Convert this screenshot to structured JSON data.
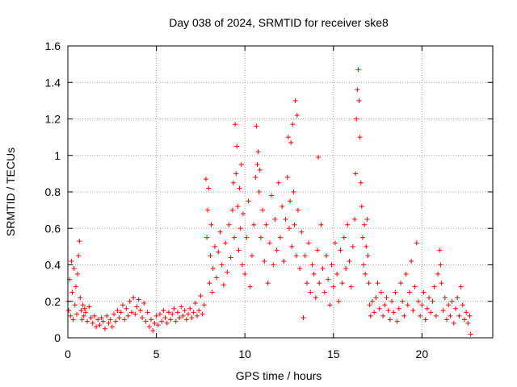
{
  "chart_data": {
    "type": "scatter",
    "title": "Day 038 of 2024, SRMTID for receiver ske8",
    "xlabel": "GPS time / hours",
    "ylabel": "SRMTID / TECUs",
    "xlim": [
      0,
      24
    ],
    "ylim": [
      0,
      1.6
    ],
    "xticks": [
      0,
      5,
      10,
      15,
      20
    ],
    "xtick_labels": [
      "0",
      "5",
      "10",
      "15",
      "20"
    ],
    "yticks": [
      0,
      0.2,
      0.4,
      0.6,
      0.8,
      1.0,
      1.2,
      1.4,
      1.6
    ],
    "ytick_labels": [
      "0",
      "0.2",
      "0.4",
      "0.6",
      "0.8",
      "1",
      "1.2",
      "1.4",
      "1.6"
    ],
    "grid": true,
    "marker": "plus",
    "color": "#ff0000",
    "series": [
      {
        "name": "SRMTID",
        "points": [
          [
            0.0,
            0.2
          ],
          [
            0.05,
            0.15
          ],
          [
            0.1,
            0.32
          ],
          [
            0.15,
            0.12
          ],
          [
            0.2,
            0.42
          ],
          [
            0.25,
            0.25
          ],
          [
            0.3,
            0.1
          ],
          [
            0.35,
            0.38
          ],
          [
            0.4,
            0.18
          ],
          [
            0.45,
            0.28
          ],
          [
            0.5,
            0.13
          ],
          [
            0.55,
            0.35
          ],
          [
            0.6,
            0.45
          ],
          [
            0.65,
            0.53
          ],
          [
            0.7,
            0.22
          ],
          [
            0.75,
            0.15
          ],
          [
            0.8,
            0.1
          ],
          [
            0.85,
            0.18
          ],
          [
            0.9,
            0.12
          ],
          [
            0.95,
            0.16
          ],
          [
            1.0,
            0.14
          ],
          [
            1.1,
            0.09
          ],
          [
            1.2,
            0.17
          ],
          [
            1.3,
            0.11
          ],
          [
            1.4,
            0.08
          ],
          [
            1.5,
            0.12
          ],
          [
            1.6,
            0.06
          ],
          [
            1.7,
            0.1
          ],
          [
            1.8,
            0.07
          ],
          [
            1.9,
            0.11
          ],
          [
            2.0,
            0.09
          ],
          [
            2.1,
            0.05
          ],
          [
            2.2,
            0.12
          ],
          [
            2.3,
            0.08
          ],
          [
            2.4,
            0.1
          ],
          [
            2.5,
            0.06
          ],
          [
            2.6,
            0.13
          ],
          [
            2.7,
            0.09
          ],
          [
            2.8,
            0.15
          ],
          [
            2.9,
            0.11
          ],
          [
            3.0,
            0.14
          ],
          [
            3.1,
            0.18
          ],
          [
            3.2,
            0.1
          ],
          [
            3.3,
            0.16
          ],
          [
            3.4,
            0.12
          ],
          [
            3.5,
            0.2
          ],
          [
            3.6,
            0.14
          ],
          [
            3.7,
            0.22
          ],
          [
            3.8,
            0.13
          ],
          [
            3.9,
            0.17
          ],
          [
            4.0,
            0.21
          ],
          [
            4.1,
            0.15
          ],
          [
            4.2,
            0.11
          ],
          [
            4.3,
            0.19
          ],
          [
            4.4,
            0.09
          ],
          [
            4.5,
            0.14
          ],
          [
            4.6,
            0.06
          ],
          [
            4.7,
            0.1
          ],
          [
            4.8,
            0.04
          ],
          [
            4.9,
            0.08
          ],
          [
            5.0,
            0.12
          ],
          [
            5.1,
            0.07
          ],
          [
            5.2,
            0.13
          ],
          [
            5.3,
            0.09
          ],
          [
            5.4,
            0.15
          ],
          [
            5.5,
            0.11
          ],
          [
            5.6,
            0.08
          ],
          [
            5.7,
            0.14
          ],
          [
            5.8,
            0.1
          ],
          [
            5.9,
            0.13
          ],
          [
            6.0,
            0.16
          ],
          [
            6.1,
            0.09
          ],
          [
            6.2,
            0.14
          ],
          [
            6.3,
            0.11
          ],
          [
            6.4,
            0.17
          ],
          [
            6.5,
            0.12
          ],
          [
            6.6,
            0.15
          ],
          [
            6.7,
            0.1
          ],
          [
            6.8,
            0.13
          ],
          [
            6.9,
            0.16
          ],
          [
            7.0,
            0.11
          ],
          [
            7.1,
            0.14
          ],
          [
            7.2,
            0.19
          ],
          [
            7.3,
            0.12
          ],
          [
            7.4,
            0.15
          ],
          [
            7.5,
            0.23
          ],
          [
            7.6,
            0.13
          ],
          [
            7.7,
            0.18
          ],
          [
            7.8,
            0.87
          ],
          [
            7.85,
            0.55
          ],
          [
            7.9,
            0.7
          ],
          [
            7.95,
            0.82
          ],
          [
            8.0,
            0.3
          ],
          [
            8.05,
            0.45
          ],
          [
            8.1,
            0.62
          ],
          [
            8.15,
            0.25
          ],
          [
            8.2,
            0.38
          ],
          [
            8.3,
            0.5
          ],
          [
            8.4,
            0.33
          ],
          [
            8.5,
            0.47
          ],
          [
            8.6,
            0.58
          ],
          [
            8.7,
            0.4
          ],
          [
            8.8,
            0.29
          ],
          [
            8.9,
            0.52
          ],
          [
            9.0,
            0.36
          ],
          [
            9.1,
            0.62
          ],
          [
            9.2,
            0.44
          ],
          [
            9.3,
            0.7
          ],
          [
            9.35,
            0.85
          ],
          [
            9.4,
            0.55
          ],
          [
            9.45,
            1.17
          ],
          [
            9.5,
            0.9
          ],
          [
            9.55,
            1.05
          ],
          [
            9.6,
            0.72
          ],
          [
            9.65,
            0.48
          ],
          [
            9.7,
            0.82
          ],
          [
            9.75,
            0.6
          ],
          [
            9.8,
            0.95
          ],
          [
            9.85,
            0.4
          ],
          [
            9.9,
            0.68
          ],
          [
            10.0,
            0.35
          ],
          [
            10.1,
            0.55
          ],
          [
            10.2,
            0.75
          ],
          [
            10.3,
            0.28
          ],
          [
            10.4,
            0.45
          ],
          [
            10.5,
            0.62
          ],
          [
            10.6,
            0.88
          ],
          [
            10.65,
            1.16
          ],
          [
            10.7,
            0.95
          ],
          [
            10.75,
            1.02
          ],
          [
            10.8,
            0.8
          ],
          [
            10.85,
            0.92
          ],
          [
            10.9,
            0.55
          ],
          [
            11.0,
            0.7
          ],
          [
            11.1,
            0.42
          ],
          [
            11.2,
            0.62
          ],
          [
            11.3,
            0.3
          ],
          [
            11.4,
            0.52
          ],
          [
            11.5,
            0.78
          ],
          [
            11.6,
            0.4
          ],
          [
            11.7,
            0.65
          ],
          [
            11.8,
            0.48
          ],
          [
            11.9,
            0.85
          ],
          [
            12.0,
            0.55
          ],
          [
            12.1,
            0.72
          ],
          [
            12.2,
            0.42
          ],
          [
            12.3,
            0.65
          ],
          [
            12.4,
            0.88
          ],
          [
            12.45,
            1.1
          ],
          [
            12.5,
            0.6
          ],
          [
            12.55,
            0.75
          ],
          [
            12.6,
            1.07
          ],
          [
            12.65,
            0.5
          ],
          [
            12.7,
            1.17
          ],
          [
            12.75,
            0.8
          ],
          [
            12.8,
            0.62
          ],
          [
            12.85,
            1.3
          ],
          [
            12.9,
            0.45
          ],
          [
            12.95,
            1.22
          ],
          [
            13.0,
            0.7
          ],
          [
            13.1,
            0.38
          ],
          [
            13.2,
            0.58
          ],
          [
            13.3,
            0.11
          ],
          [
            13.4,
            0.45
          ],
          [
            13.5,
            0.3
          ],
          [
            13.6,
            0.52
          ],
          [
            13.7,
            0.25
          ],
          [
            13.8,
            0.4
          ],
          [
            13.9,
            0.35
          ],
          [
            14.0,
            0.22
          ],
          [
            14.1,
            0.48
          ],
          [
            14.15,
            0.99
          ],
          [
            14.2,
            0.3
          ],
          [
            14.3,
            0.62
          ],
          [
            14.4,
            0.38
          ],
          [
            14.5,
            0.25
          ],
          [
            14.6,
            0.45
          ],
          [
            14.7,
            0.32
          ],
          [
            14.8,
            0.18
          ],
          [
            14.9,
            0.4
          ],
          [
            15.0,
            0.28
          ],
          [
            15.1,
            0.52
          ],
          [
            15.2,
            0.35
          ],
          [
            15.3,
            0.2
          ],
          [
            15.4,
            0.48
          ],
          [
            15.5,
            0.3
          ],
          [
            15.6,
            0.55
          ],
          [
            15.7,
            0.38
          ],
          [
            15.8,
            0.62
          ],
          [
            15.9,
            0.42
          ],
          [
            16.0,
            0.28
          ],
          [
            16.1,
            0.5
          ],
          [
            16.2,
            0.65
          ],
          [
            16.25,
            0.9
          ],
          [
            16.3,
            1.2
          ],
          [
            16.35,
            1.36
          ],
          [
            16.4,
            1.47
          ],
          [
            16.45,
            1.3
          ],
          [
            16.5,
            1.1
          ],
          [
            16.55,
            0.85
          ],
          [
            16.6,
            0.72
          ],
          [
            16.65,
            0.55
          ],
          [
            16.7,
            0.4
          ],
          [
            16.75,
            0.62
          ],
          [
            16.8,
            0.35
          ],
          [
            16.85,
            0.5
          ],
          [
            16.9,
            0.65
          ],
          [
            16.95,
            0.45
          ],
          [
            17.0,
            0.3
          ],
          [
            17.05,
            0.18
          ],
          [
            17.1,
            0.12
          ],
          [
            17.2,
            0.2
          ],
          [
            17.3,
            0.14
          ],
          [
            17.4,
            0.22
          ],
          [
            17.5,
            0.3
          ],
          [
            17.6,
            0.16
          ],
          [
            17.7,
            0.25
          ],
          [
            17.8,
            0.12
          ],
          [
            17.9,
            0.18
          ],
          [
            18.0,
            0.22
          ],
          [
            18.1,
            0.15
          ],
          [
            18.2,
            0.1
          ],
          [
            18.3,
            0.2
          ],
          [
            18.4,
            0.14
          ],
          [
            18.5,
            0.25
          ],
          [
            18.6,
            0.09
          ],
          [
            18.7,
            0.16
          ],
          [
            18.8,
            0.3
          ],
          [
            18.9,
            0.2
          ],
          [
            19.0,
            0.12
          ],
          [
            19.1,
            0.35
          ],
          [
            19.2,
            0.18
          ],
          [
            19.3,
            0.25
          ],
          [
            19.4,
            0.42
          ],
          [
            19.5,
            0.15
          ],
          [
            19.6,
            0.28
          ],
          [
            19.7,
            0.52
          ],
          [
            19.8,
            0.2
          ],
          [
            19.9,
            0.12
          ],
          [
            20.0,
            0.18
          ],
          [
            20.1,
            0.25
          ],
          [
            20.2,
            0.1
          ],
          [
            20.3,
            0.16
          ],
          [
            20.4,
            0.22
          ],
          [
            20.5,
            0.14
          ],
          [
            20.6,
            0.2
          ],
          [
            20.7,
            0.28
          ],
          [
            20.8,
            0.12
          ],
          [
            20.9,
            0.35
          ],
          [
            21.0,
            0.48
          ],
          [
            21.05,
            0.4
          ],
          [
            21.1,
            0.3
          ],
          [
            21.2,
            0.15
          ],
          [
            21.3,
            0.22
          ],
          [
            21.4,
            0.1
          ],
          [
            21.5,
            0.18
          ],
          [
            21.6,
            0.12
          ],
          [
            21.7,
            0.2
          ],
          [
            21.8,
            0.08
          ],
          [
            21.9,
            0.16
          ],
          [
            22.0,
            0.22
          ],
          [
            22.1,
            0.12
          ],
          [
            22.2,
            0.28
          ],
          [
            22.3,
            0.18
          ],
          [
            22.4,
            0.1
          ],
          [
            22.5,
            0.14
          ],
          [
            22.6,
            0.08
          ],
          [
            22.7,
            0.12
          ],
          [
            22.75,
            0.02
          ]
        ]
      }
    ]
  }
}
